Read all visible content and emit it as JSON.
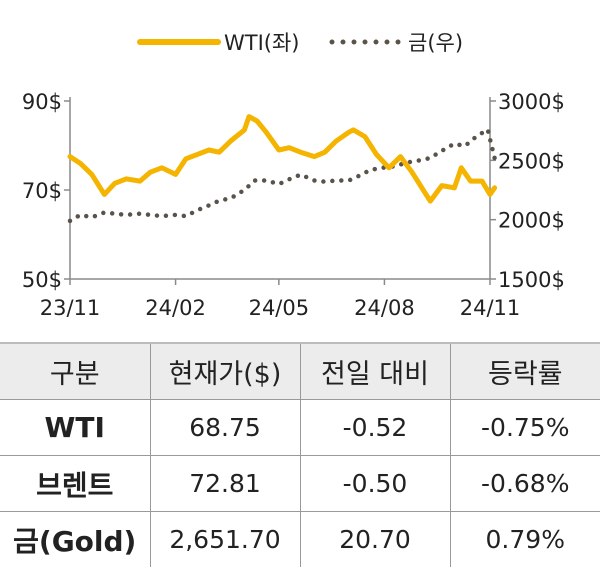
{
  "chart_data": {
    "type": "line",
    "legend": {
      "placement": "top-center",
      "items": [
        {
          "label": "WTI(좌)",
          "style": "solid",
          "color": "#f5b400"
        },
        {
          "label": "금(우)",
          "style": "dotted",
          "color": "#5a534a"
        }
      ]
    },
    "x_tick_labels": [
      "23/11",
      "24/02",
      "24/05",
      "24/08",
      "24/11"
    ],
    "left_axis": {
      "min": 50,
      "max": 90,
      "tick_labels": [
        "90$",
        "70$",
        "50$"
      ],
      "tick_values": [
        90,
        70,
        50
      ]
    },
    "right_axis": {
      "min": 1500,
      "max": 3000,
      "tick_labels": [
        "3000$",
        "2500$",
        "2000$",
        "1500$"
      ],
      "tick_values": [
        3000,
        2500,
        2000,
        1500
      ]
    },
    "grid": false,
    "series": [
      {
        "name": "WTI(좌)",
        "axis": "left",
        "color": "#f5b400",
        "x": [
          "2023-11-01",
          "2023-11-10",
          "2023-11-20",
          "2023-12-01",
          "2023-12-10",
          "2023-12-20",
          "2024-01-01",
          "2024-01-10",
          "2024-01-20",
          "2024-02-01",
          "2024-02-10",
          "2024-02-20",
          "2024-03-01",
          "2024-03-10",
          "2024-03-20",
          "2024-04-01",
          "2024-04-05",
          "2024-04-12",
          "2024-04-20",
          "2024-05-01",
          "2024-05-10",
          "2024-05-20",
          "2024-06-01",
          "2024-06-10",
          "2024-06-20",
          "2024-07-01",
          "2024-07-05",
          "2024-07-15",
          "2024-07-25",
          "2024-08-05",
          "2024-08-15",
          "2024-08-25",
          "2024-09-05",
          "2024-09-10",
          "2024-09-20",
          "2024-10-01",
          "2024-10-07",
          "2024-10-15",
          "2024-10-25",
          "2024-11-01",
          "2024-11-05"
        ],
        "values": [
          77.5,
          76.0,
          73.5,
          69.0,
          71.5,
          72.5,
          72.0,
          74.0,
          75.0,
          73.5,
          77.0,
          78.0,
          79.0,
          78.5,
          81.0,
          83.5,
          86.5,
          85.5,
          83.0,
          79.0,
          79.5,
          78.5,
          77.5,
          78.5,
          81.0,
          83.0,
          83.5,
          82.0,
          78.0,
          75.0,
          77.5,
          74.0,
          69.5,
          67.5,
          71.0,
          70.5,
          75.0,
          72.0,
          72.0,
          69.0,
          70.5
        ]
      },
      {
        "name": "금(우)",
        "axis": "right",
        "color": "#5a534a",
        "x": [
          "2023-11-01",
          "2023-11-10",
          "2023-11-20",
          "2023-12-01",
          "2023-12-10",
          "2023-12-20",
          "2024-01-01",
          "2024-01-10",
          "2024-01-20",
          "2024-02-01",
          "2024-02-10",
          "2024-02-20",
          "2024-03-01",
          "2024-03-10",
          "2024-03-20",
          "2024-04-01",
          "2024-04-10",
          "2024-04-20",
          "2024-05-01",
          "2024-05-10",
          "2024-05-20",
          "2024-06-01",
          "2024-06-10",
          "2024-06-20",
          "2024-07-01",
          "2024-07-10",
          "2024-07-20",
          "2024-08-01",
          "2024-08-10",
          "2024-08-20",
          "2024-09-01",
          "2024-09-10",
          "2024-09-20",
          "2024-10-01",
          "2024-10-10",
          "2024-10-20",
          "2024-10-30",
          "2024-11-05"
        ],
        "values": [
          1990,
          2040,
          2020,
          2060,
          2050,
          2040,
          2050,
          2040,
          2030,
          2040,
          2030,
          2080,
          2120,
          2160,
          2180,
          2250,
          2330,
          2330,
          2300,
          2340,
          2380,
          2330,
          2320,
          2330,
          2330,
          2370,
          2420,
          2440,
          2450,
          2480,
          2500,
          2520,
          2580,
          2640,
          2620,
          2700,
          2760,
          2520
        ]
      }
    ]
  },
  "table": {
    "headers": [
      "구분",
      "현재가($)",
      "전일 대비",
      "등락률"
    ],
    "rows": [
      {
        "label": "WTI",
        "price": "68.75",
        "change": "-0.52",
        "pct": "-0.75%"
      },
      {
        "label": "브렌트",
        "price": "72.81",
        "change": "-0.50",
        "pct": "-0.68%"
      },
      {
        "label": "금(Gold)",
        "price": "2,651.70",
        "change": "20.70",
        "pct": "0.79%"
      }
    ]
  }
}
